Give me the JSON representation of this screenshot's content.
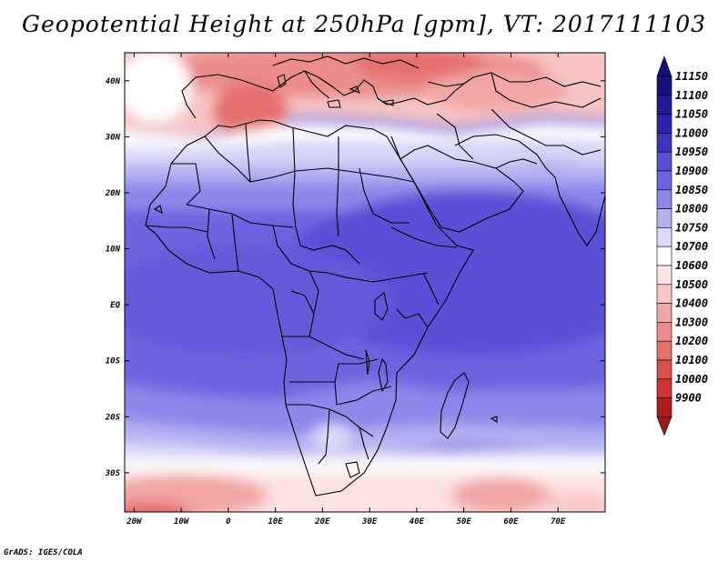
{
  "title": "Geopotential Height at 250hPa [gpm], VT: 2017111103",
  "credit": "GrADS: IGES/COLA",
  "map": {
    "projection": "latlon",
    "lon_range": [
      -22,
      80
    ],
    "lat_range": [
      -37,
      45
    ],
    "lat_ticks": [
      {
        "value": 40,
        "label": "40N"
      },
      {
        "value": 30,
        "label": "30N"
      },
      {
        "value": 20,
        "label": "20N"
      },
      {
        "value": 10,
        "label": "10N"
      },
      {
        "value": 0,
        "label": "EQ"
      },
      {
        "value": -10,
        "label": "10S"
      },
      {
        "value": -20,
        "label": "20S"
      },
      {
        "value": -30,
        "label": "30S"
      }
    ],
    "lon_ticks": [
      {
        "value": -20,
        "label": "20W"
      },
      {
        "value": -10,
        "label": "10W"
      },
      {
        "value": 0,
        "label": "0"
      },
      {
        "value": 10,
        "label": "10E"
      },
      {
        "value": 20,
        "label": "20E"
      },
      {
        "value": 30,
        "label": "30E"
      },
      {
        "value": 40,
        "label": "40E"
      },
      {
        "value": 50,
        "label": "50E"
      },
      {
        "value": 60,
        "label": "60E"
      },
      {
        "value": 70,
        "label": "70E"
      }
    ]
  },
  "colorbar": {
    "levels": [
      {
        "label": "11150",
        "color": "#15117f"
      },
      {
        "label": "11100",
        "color": "#1f1a96"
      },
      {
        "label": "11050",
        "color": "#2b24ab"
      },
      {
        "label": "11000",
        "color": "#3b34bf"
      },
      {
        "label": "10950",
        "color": "#5a50d6"
      },
      {
        "label": "10900",
        "color": "#6c64e0"
      },
      {
        "label": "10850",
        "color": "#8d87ea"
      },
      {
        "label": "10800",
        "color": "#b6b2f2"
      },
      {
        "label": "10750",
        "color": "#dcdaf8"
      },
      {
        "label": "10700",
        "color": "#ffffff"
      },
      {
        "label": "10600",
        "color": "#fde2e2"
      },
      {
        "label": "10500",
        "color": "#f8c5c5"
      },
      {
        "label": "10400",
        "color": "#f2a6a6"
      },
      {
        "label": "10300",
        "color": "#ec8c8c"
      },
      {
        "label": "10200",
        "color": "#e57070"
      },
      {
        "label": "10100",
        "color": "#dc5050"
      },
      {
        "label": "10000",
        "color": "#cf3434"
      },
      {
        "label": "9900",
        "color": "#b01c1c"
      }
    ],
    "top_arrow_color": "#120f78",
    "bottom_arrow_color": "#a11818"
  }
}
